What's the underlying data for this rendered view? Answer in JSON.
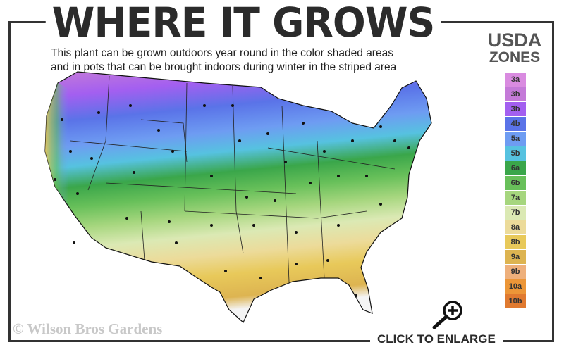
{
  "title": "WHERE IT GROWS",
  "subtitle_line1": "This plant can be grown outdoors year round in the color shaded areas",
  "subtitle_line2": "and in pots that can be brought indoors during winter in the striped area",
  "legend": {
    "title_line1": "USDA",
    "title_line2": "ZONES",
    "zones": [
      {
        "label": "3a",
        "color": "#d98be0"
      },
      {
        "label": "3b",
        "color": "#c47ad8"
      },
      {
        "label": "3b",
        "color": "#a35ff0"
      },
      {
        "label": "4b",
        "color": "#5a73e8"
      },
      {
        "label": "5a",
        "color": "#6e9cf2"
      },
      {
        "label": "5b",
        "color": "#56c2e0"
      },
      {
        "label": "6a",
        "color": "#3aa64a"
      },
      {
        "label": "6b",
        "color": "#68c05a"
      },
      {
        "label": "7a",
        "color": "#a6d67e"
      },
      {
        "label": "7b",
        "color": "#dbe9b4"
      },
      {
        "label": "8a",
        "color": "#ecdb9a"
      },
      {
        "label": "8b",
        "color": "#e8c95a"
      },
      {
        "label": "9a",
        "color": "#ddb451"
      },
      {
        "label": "9b",
        "color": "#eeb07c"
      },
      {
        "label": "10a",
        "color": "#ec9638"
      },
      {
        "label": "10b",
        "color": "#e07a30"
      }
    ]
  },
  "copyright": "© Wilson Bros Gardens",
  "enlarge_label": "CLICK TO ENLARGE",
  "icons": {
    "zoom": "magnifier-plus-icon"
  }
}
